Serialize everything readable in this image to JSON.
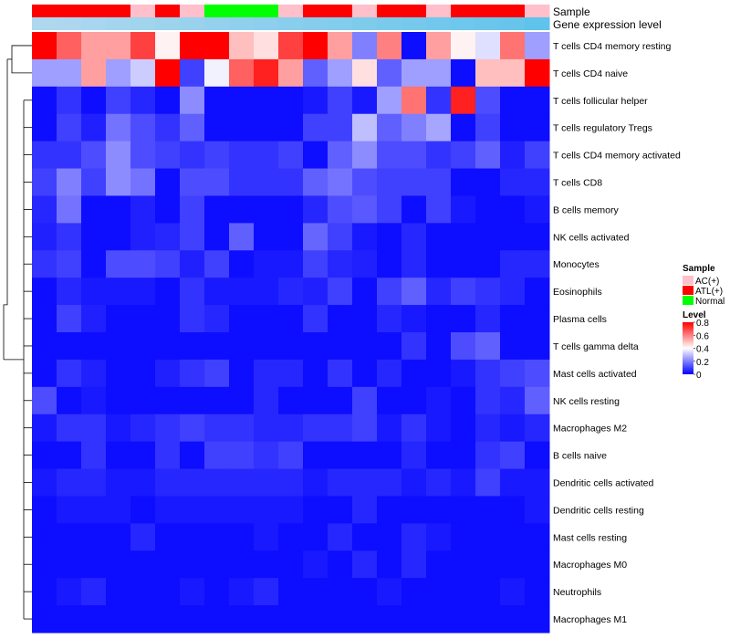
{
  "chart_data": {
    "type": "heatmap",
    "title": "",
    "annotation_labels": [
      "Sample",
      "Gene expression level"
    ],
    "rows": [
      "T cells CD4 memory resting",
      "T cells CD4 naive",
      "T cells follicular helper",
      "T cells regulatory  Tregs",
      "T cells CD4 memory activated",
      "T cells CD8",
      "B cells memory",
      "NK cells activated",
      "Monocytes",
      "Eosinophils",
      "Plasma cells",
      "T cells gamma delta",
      "Mast cells activated",
      "NK cells resting",
      "Macrophages M2",
      "B cells naive",
      "Dendritic cells activated",
      "Dendritic cells resting",
      "Mast cells resting",
      "Macrophages M0",
      "Neutrophils",
      "Macrophages M1"
    ],
    "sample_groups": [
      "ATL(+)",
      "ATL(+)",
      "ATL(+)",
      "ATL(+)",
      "AC(+)",
      "ATL(+)",
      "AC(+)",
      "Normal",
      "Normal",
      "Normal",
      "AC(+)",
      "ATL(+)",
      "ATL(+)",
      "AC(+)",
      "ATL(+)",
      "ATL(+)",
      "AC(+)",
      "ATL(+)",
      "ATL(+)",
      "ATL(+)",
      "AC(+)"
    ],
    "gene_expression_level": [
      0.35,
      0.36,
      0.38,
      0.4,
      0.42,
      0.44,
      0.46,
      0.48,
      0.5,
      0.52,
      0.54,
      0.56,
      0.58,
      0.6,
      0.62,
      0.64,
      0.66,
      0.68,
      0.7,
      0.72,
      0.76
    ],
    "values": [
      [
        0.8,
        0.65,
        0.55,
        0.55,
        0.7,
        0.42,
        0.8,
        0.8,
        0.5,
        0.45,
        0.7,
        0.8,
        0.55,
        0.2,
        0.6,
        0.02,
        0.55,
        0.42,
        0.35,
        0.62,
        0.25
      ],
      [
        0.25,
        0.25,
        0.55,
        0.25,
        0.32,
        0.8,
        0.1,
        0.38,
        0.65,
        0.75,
        0.55,
        0.15,
        0.25,
        0.45,
        0.15,
        0.25,
        0.25,
        0.02,
        0.5,
        0.5,
        0.8
      ],
      [
        0.02,
        0.08,
        0.02,
        0.1,
        0.06,
        0.02,
        0.22,
        0.02,
        0.02,
        0.02,
        0.02,
        0.04,
        0.1,
        0.04,
        0.25,
        0.62,
        0.08,
        0.75,
        0.12,
        0.02,
        0.02
      ],
      [
        0.02,
        0.1,
        0.05,
        0.18,
        0.12,
        0.08,
        0.15,
        0.02,
        0.02,
        0.02,
        0.02,
        0.1,
        0.1,
        0.3,
        0.15,
        0.2,
        0.26,
        0.02,
        0.1,
        0.02,
        0.02
      ],
      [
        0.08,
        0.08,
        0.12,
        0.22,
        0.12,
        0.1,
        0.08,
        0.1,
        0.08,
        0.08,
        0.1,
        0.02,
        0.15,
        0.22,
        0.12,
        0.12,
        0.08,
        0.1,
        0.15,
        0.05,
        0.1
      ],
      [
        0.1,
        0.2,
        0.1,
        0.22,
        0.18,
        0.02,
        0.12,
        0.12,
        0.08,
        0.08,
        0.08,
        0.15,
        0.18,
        0.12,
        0.1,
        0.1,
        0.1,
        0.02,
        0.02,
        0.06,
        0.06
      ],
      [
        0.06,
        0.18,
        0.02,
        0.02,
        0.05,
        0.02,
        0.1,
        0.02,
        0.02,
        0.02,
        0.02,
        0.06,
        0.12,
        0.14,
        0.1,
        0.02,
        0.1,
        0.04,
        0.02,
        0.02,
        0.04
      ],
      [
        0.05,
        0.08,
        0.02,
        0.02,
        0.05,
        0.06,
        0.1,
        0.02,
        0.15,
        0.02,
        0.02,
        0.16,
        0.1,
        0.04,
        0.02,
        0.06,
        0.02,
        0.02,
        0.02,
        0.02,
        0.02
      ],
      [
        0.08,
        0.1,
        0.02,
        0.12,
        0.12,
        0.1,
        0.05,
        0.1,
        0.02,
        0.04,
        0.04,
        0.1,
        0.06,
        0.05,
        0.02,
        0.06,
        0.02,
        0.02,
        0.02,
        0.06,
        0.06
      ],
      [
        0.02,
        0.06,
        0.04,
        0.04,
        0.04,
        0.02,
        0.08,
        0.04,
        0.04,
        0.04,
        0.06,
        0.05,
        0.1,
        0.02,
        0.1,
        0.15,
        0.06,
        0.1,
        0.08,
        0.06,
        0.02
      ],
      [
        0.02,
        0.1,
        0.05,
        0.02,
        0.02,
        0.02,
        0.08,
        0.06,
        0.02,
        0.02,
        0.02,
        0.08,
        0.02,
        0.02,
        0.06,
        0.04,
        0.02,
        0.02,
        0.06,
        0.02,
        0.02
      ],
      [
        0.02,
        0.02,
        0.02,
        0.02,
        0.02,
        0.02,
        0.02,
        0.02,
        0.02,
        0.02,
        0.02,
        0.02,
        0.02,
        0.02,
        0.02,
        0.08,
        0.02,
        0.12,
        0.15,
        0.02,
        0.02
      ],
      [
        0.02,
        0.08,
        0.05,
        0.02,
        0.02,
        0.05,
        0.08,
        0.1,
        0.02,
        0.06,
        0.06,
        0.02,
        0.08,
        0.02,
        0.06,
        0.02,
        0.02,
        0.04,
        0.08,
        0.1,
        0.12
      ],
      [
        0.12,
        0.02,
        0.04,
        0.02,
        0.02,
        0.02,
        0.02,
        0.02,
        0.02,
        0.06,
        0.02,
        0.02,
        0.02,
        0.1,
        0.02,
        0.02,
        0.04,
        0.02,
        0.08,
        0.06,
        0.15
      ],
      [
        0.04,
        0.08,
        0.08,
        0.04,
        0.06,
        0.08,
        0.1,
        0.08,
        0.08,
        0.06,
        0.06,
        0.08,
        0.08,
        0.1,
        0.04,
        0.08,
        0.04,
        0.02,
        0.06,
        0.04,
        0.06
      ],
      [
        0.02,
        0.02,
        0.08,
        0.02,
        0.02,
        0.08,
        0.02,
        0.1,
        0.1,
        0.08,
        0.1,
        0.02,
        0.02,
        0.02,
        0.02,
        0.06,
        0.02,
        0.02,
        0.08,
        0.1,
        0.02
      ],
      [
        0.04,
        0.06,
        0.06,
        0.04,
        0.04,
        0.06,
        0.06,
        0.06,
        0.06,
        0.06,
        0.06,
        0.04,
        0.06,
        0.06,
        0.06,
        0.04,
        0.06,
        0.04,
        0.1,
        0.04,
        0.04
      ],
      [
        0.02,
        0.04,
        0.04,
        0.04,
        0.02,
        0.04,
        0.04,
        0.04,
        0.04,
        0.04,
        0.04,
        0.02,
        0.02,
        0.06,
        0.02,
        0.02,
        0.02,
        0.02,
        0.02,
        0.02,
        0.04
      ],
      [
        0.02,
        0.02,
        0.02,
        0.02,
        0.06,
        0.02,
        0.02,
        0.02,
        0.02,
        0.04,
        0.02,
        0.02,
        0.06,
        0.02,
        0.02,
        0.06,
        0.04,
        0.02,
        0.02,
        0.02,
        0.02
      ],
      [
        0.02,
        0.02,
        0.02,
        0.02,
        0.02,
        0.02,
        0.02,
        0.02,
        0.02,
        0.02,
        0.02,
        0.04,
        0.02,
        0.06,
        0.02,
        0.06,
        0.02,
        0.02,
        0.02,
        0.02,
        0.02
      ],
      [
        0.02,
        0.04,
        0.06,
        0.02,
        0.02,
        0.02,
        0.04,
        0.02,
        0.04,
        0.06,
        0.02,
        0.02,
        0.02,
        0.02,
        0.04,
        0.02,
        0.02,
        0.02,
        0.02,
        0.04,
        0.02
      ],
      [
        0.02,
        0.02,
        0.02,
        0.02,
        0.02,
        0.02,
        0.02,
        0.02,
        0.02,
        0.02,
        0.02,
        0.02,
        0.02,
        0.02,
        0.02,
        0.02,
        0.02,
        0.02,
        0.02,
        0.02,
        0.02
      ]
    ],
    "legend": {
      "sample_title": "Sample",
      "sample_items": [
        {
          "label": "AC(+)",
          "color": "#ffc0cb"
        },
        {
          "label": "ATL(+)",
          "color": "#ff0000"
        },
        {
          "label": "Normal",
          "color": "#00ff00"
        }
      ],
      "level_title": "Level",
      "level_ticks": [
        "0.8",
        "0.6",
        "0.4",
        "0.2",
        "0"
      ],
      "level_range": [
        0,
        0.8
      ],
      "placement": "right"
    },
    "colors": {
      "low": "#0000ff",
      "mid": "#ffffff",
      "high": "#ff0000",
      "expr_low": "#aed8ee",
      "expr_high": "#5fc3eb"
    }
  }
}
